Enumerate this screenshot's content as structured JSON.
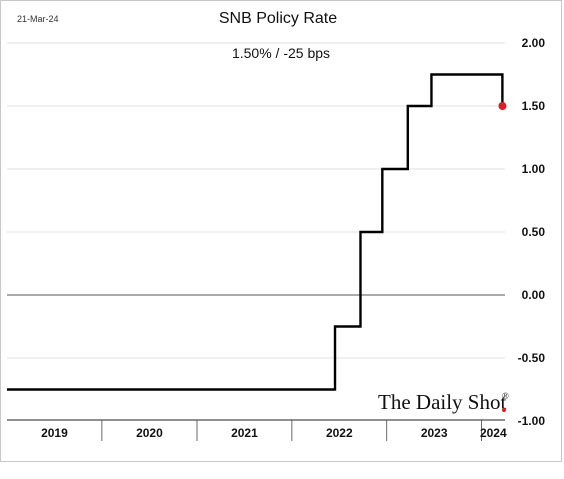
{
  "date_stamp": "21-Mar-24",
  "brand": {
    "name": "The Daily Shot",
    "reg_mark": "®"
  },
  "colors": {
    "line": "#000000",
    "marker": "#e31b23",
    "grid": "#d9d9d9",
    "zero_line": "#555555",
    "brand_dot": "#e31b23"
  },
  "chart_data": {
    "type": "line",
    "title": "SNB Policy Rate",
    "subtitle": "1.50%  /  -25 bps",
    "xlabel": "",
    "ylabel": "",
    "ylim": [
      -1.0,
      2.0
    ],
    "yticks": [
      2.0,
      1.5,
      1.0,
      0.5,
      0.0,
      -0.5,
      -1.0
    ],
    "ytick_labels": [
      "2.00",
      "1.50",
      "1.00",
      "0.50",
      "0.00",
      "-0.50",
      "-1.00"
    ],
    "y_axis_side": "right",
    "grid": true,
    "xlim": [
      "2019-01-01",
      "2024-03-31"
    ],
    "year_labels": [
      "2019",
      "2020",
      "2021",
      "2022",
      "2023",
      "2024"
    ],
    "series": [
      {
        "step": "post",
        "points": [
          {
            "x": "2019-01-01",
            "y": -0.75
          },
          {
            "x": "2022-06-16",
            "y": -0.25
          },
          {
            "x": "2022-09-22",
            "y": 0.5
          },
          {
            "x": "2022-12-15",
            "y": 1.0
          },
          {
            "x": "2023-03-23",
            "y": 1.5
          },
          {
            "x": "2023-06-22",
            "y": 1.75
          },
          {
            "x": "2024-03-21",
            "y": 1.5
          }
        ]
      }
    ],
    "last_point_marker": true
  }
}
